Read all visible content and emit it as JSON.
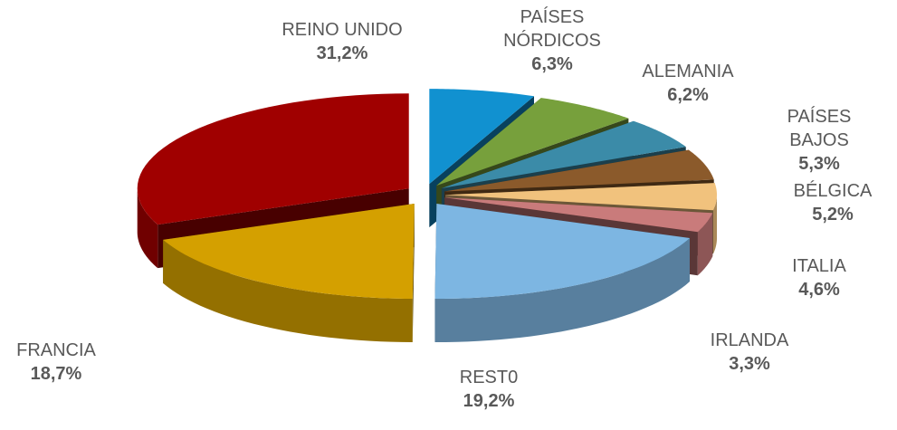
{
  "chart_data": {
    "type": "pie",
    "categories": [
      "REINO UNIDO",
      "PAÍSES NÓRDICOS",
      "ALEMANIA",
      "PAÍSES BAJOS",
      "BÉLGICA",
      "ITALIA",
      "IRLANDA",
      "REST0",
      "FRANCIA"
    ],
    "values": [
      31.2,
      6.3,
      6.2,
      5.3,
      5.2,
      4.6,
      3.3,
      19.2,
      18.7
    ],
    "value_labels": [
      "31,2%",
      "6,3%",
      "6,2%",
      "5,3%",
      "5,2%",
      "4,6%",
      "3,3%",
      "19,2%",
      "18,7%"
    ],
    "colors": [
      "#a00000",
      "#1191d0",
      "#77a03c",
      "#3b8ba8",
      "#8b5a2b",
      "#f1c27d",
      "#c97b7b",
      "#7db6e2",
      "#d4a000"
    ]
  }
}
